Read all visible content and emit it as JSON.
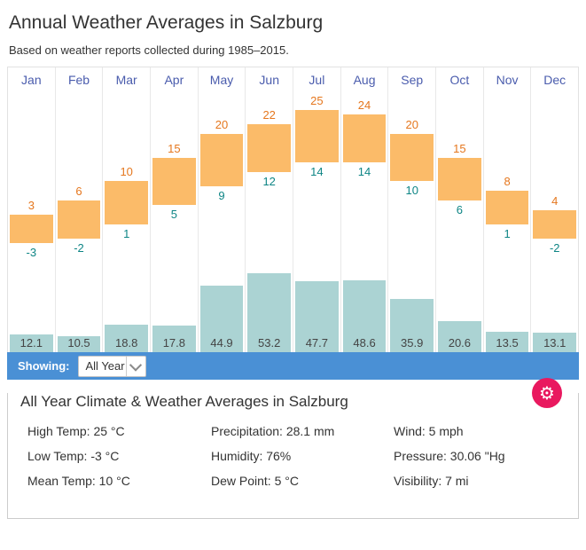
{
  "header": {
    "title": "Annual Weather Averages in Salzburg",
    "subtitle": "Based on weather reports collected during 1985–2015."
  },
  "chart_data": {
    "type": "bar",
    "title": "Annual Weather Averages in Salzburg",
    "categories": [
      "Jan",
      "Feb",
      "Mar",
      "Apr",
      "May",
      "Jun",
      "Jul",
      "Aug",
      "Sep",
      "Oct",
      "Nov",
      "Dec"
    ],
    "series": [
      {
        "name": "High Temp (°C)",
        "values": [
          3,
          6,
          10,
          15,
          20,
          22,
          25,
          24,
          20,
          15,
          8,
          4
        ]
      },
      {
        "name": "Low Temp (°C)",
        "values": [
          -3,
          -2,
          1,
          5,
          9,
          12,
          14,
          14,
          10,
          6,
          1,
          -2
        ]
      },
      {
        "name": "Precipitation (mm)",
        "values": [
          12.1,
          10.5,
          18.8,
          17.8,
          44.9,
          53.2,
          47.7,
          48.6,
          35.9,
          20.6,
          13.5,
          13.1
        ]
      }
    ],
    "temp_axis_max": 25,
    "precip_axis_max": 53.2,
    "legend_position": "none",
    "grid": "vertical-column-separators",
    "colors": {
      "temp_bar": "#fbbb69",
      "precip_bar": "#abd3d3",
      "high_label": "#e5771e",
      "low_label": "#0e8585",
      "precip_label": "#444444",
      "month_label": "#4a5cad"
    }
  },
  "controls": {
    "showing_label": "Showing:",
    "selected_period": "All Year",
    "options": [
      "All Year"
    ],
    "bar_color": "#4a90d5",
    "settings_button_color": "#e9195f"
  },
  "summary": {
    "title": "All Year Climate & Weather Averages in Salzburg",
    "stats": [
      {
        "name": "high-temp",
        "label": "High Temp",
        "value": "25 °C"
      },
      {
        "name": "low-temp",
        "label": "Low Temp",
        "value": "-3 °C"
      },
      {
        "name": "mean-temp",
        "label": "Mean Temp",
        "value": "10 °C"
      },
      {
        "name": "precipitation",
        "label": "Precipitation",
        "value": "28.1 mm"
      },
      {
        "name": "humidity",
        "label": "Humidity",
        "value": "76%"
      },
      {
        "name": "dew-point",
        "label": "Dew Point",
        "value": "5 °C"
      },
      {
        "name": "wind",
        "label": "Wind",
        "value": "5 mph"
      },
      {
        "name": "pressure",
        "label": "Pressure",
        "value": "30.06 \"Hg"
      },
      {
        "name": "visibility",
        "label": "Visibility",
        "value": "7 mi"
      }
    ]
  }
}
